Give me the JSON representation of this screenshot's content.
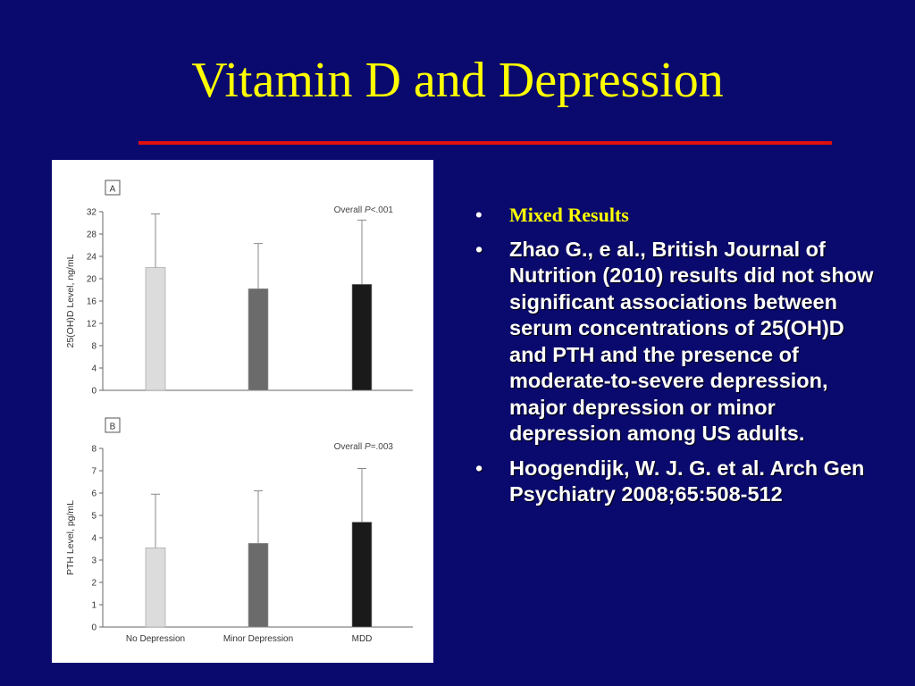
{
  "slide": {
    "title": "Vitamin D and Depression",
    "colors": {
      "background": "#0a0a6e",
      "title": "#ffff00",
      "rule": "#e01010",
      "heading": "#ffff00",
      "text": "#ffffff"
    },
    "bullets": [
      {
        "text": "Mixed Results",
        "style": "heading"
      },
      {
        "text": "Zhao G., e al., British Journal of Nutrition (2010) results did not show significant associations between serum concentrations of 25(OH)D and PTH and the presence of moderate-to-severe depression, major depression or minor depression among US adults.",
        "style": "body"
      },
      {
        "text": "Hoogendijk, W. J. G. et al. Arch Gen Psychiatry 2008;65:508-512",
        "style": "body"
      }
    ]
  },
  "chart_data": [
    {
      "type": "bar",
      "panel_label": "A",
      "annotation": {
        "prefix": "Overall ",
        "p": "P",
        "suffix": "<.001"
      },
      "ylabel": "25(OH)D Level, ng/mL",
      "ylim": [
        0,
        32
      ],
      "yticks": [
        0,
        4,
        8,
        12,
        16,
        20,
        24,
        28,
        32
      ],
      "categories": [
        "No Depression",
        "Minor Depression",
        "MDD"
      ],
      "values": [
        22,
        18.2,
        19
      ],
      "error_upper": [
        31.6,
        26.3,
        30.5
      ],
      "bar_colors": [
        "#dcdcdc",
        "#6b6b6b",
        "#1a1a1a"
      ],
      "show_category_labels": false
    },
    {
      "type": "bar",
      "panel_label": "B",
      "annotation": {
        "prefix": "Overall ",
        "p": "P",
        "suffix": "=.003"
      },
      "ylabel": "PTH Level, pg/mL",
      "ylim": [
        0,
        8
      ],
      "yticks": [
        0,
        1,
        2,
        3,
        4,
        5,
        6,
        7,
        8
      ],
      "categories": [
        "No Depression",
        "Minor Depression",
        "MDD"
      ],
      "values": [
        3.55,
        3.75,
        4.7
      ],
      "error_upper": [
        5.95,
        6.1,
        7.1
      ],
      "bar_colors": [
        "#dcdcdc",
        "#6b6b6b",
        "#1a1a1a"
      ],
      "show_category_labels": true
    }
  ]
}
